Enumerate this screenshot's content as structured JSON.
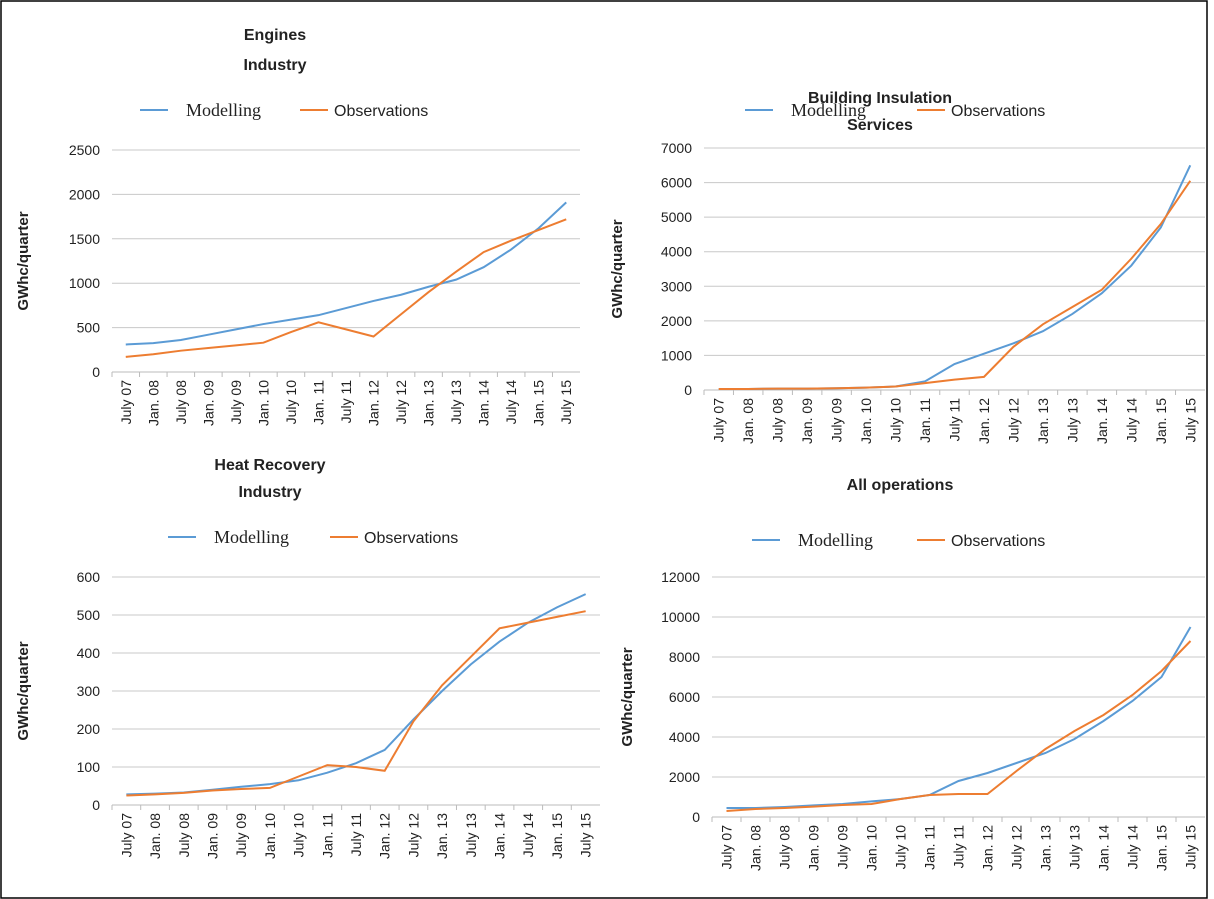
{
  "chart_data": [
    {
      "type": "line",
      "title": [
        "Engines",
        "Industry"
      ],
      "y_label": "GWhc/quarter",
      "categories": [
        "July 07",
        "Jan. 08",
        "July 08",
        "Jan. 09",
        "July 09",
        "Jan. 10",
        "July 10",
        "Jan. 11",
        "July 11",
        "Jan. 12",
        "July 12",
        "Jan. 13",
        "July 13",
        "Jan. 14",
        "July 14",
        "Jan. 15",
        "July 15"
      ],
      "series": [
        {
          "name": "Modelling",
          "color": "#5b9bd5",
          "values": [
            310,
            325,
            360,
            420,
            480,
            540,
            590,
            640,
            720,
            800,
            870,
            960,
            1040,
            1180,
            1380,
            1620,
            1910
          ]
        },
        {
          "name": "Observations",
          "color": "#ed7d31",
          "values": [
            170,
            200,
            240,
            270,
            300,
            330,
            450,
            560,
            480,
            400,
            650,
            900,
            1130,
            1350,
            1480,
            1600,
            1720
          ]
        }
      ],
      "ylim": [
        0,
        2500
      ],
      "yticks": [
        0,
        500,
        1000,
        1500,
        2000,
        2500
      ],
      "grid": true
    },
    {
      "type": "line",
      "title": [
        "Building Insulation",
        "Services"
      ],
      "y_label": "GWhc/quarter",
      "categories": [
        "July 07",
        "Jan. 08",
        "July 08",
        "Jan. 09",
        "July 09",
        "Jan. 10",
        "July 10",
        "Jan. 11",
        "July 11",
        "Jan. 12",
        "July 12",
        "Jan. 13",
        "July 13",
        "Jan. 14",
        "July 14",
        "Jan. 15",
        "July 15"
      ],
      "series": [
        {
          "name": "Modelling",
          "color": "#5b9bd5",
          "values": [
            30,
            30,
            40,
            40,
            50,
            70,
            100,
            250,
            750,
            1050,
            1350,
            1700,
            2200,
            2800,
            3600,
            4700,
            6500
          ]
        },
        {
          "name": "Observations",
          "color": "#ed7d31",
          "values": [
            30,
            30,
            40,
            40,
            50,
            70,
            100,
            200,
            300,
            380,
            1250,
            1900,
            2400,
            2900,
            3800,
            4800,
            6050
          ]
        }
      ],
      "ylim": [
        0,
        7000
      ],
      "yticks": [
        0,
        1000,
        2000,
        3000,
        4000,
        5000,
        6000,
        7000
      ],
      "grid": true
    },
    {
      "type": "line",
      "title": [
        "Heat Recovery",
        "Industry"
      ],
      "y_label": "GWhc/quarter",
      "categories": [
        "July 07",
        "Jan. 08",
        "July 08",
        "Jan. 09",
        "July 09",
        "Jan. 10",
        "July 10",
        "Jan. 11",
        "July 11",
        "Jan. 12",
        "July 12",
        "Jan. 13",
        "July 13",
        "Jan. 14",
        "July 14",
        "Jan. 15",
        "July 15"
      ],
      "series": [
        {
          "name": "Modelling",
          "color": "#5b9bd5",
          "values": [
            28,
            30,
            33,
            40,
            48,
            55,
            65,
            85,
            110,
            145,
            225,
            300,
            370,
            430,
            480,
            520,
            555
          ]
        },
        {
          "name": "Observations",
          "color": "#ed7d31",
          "values": [
            25,
            28,
            32,
            38,
            42,
            45,
            75,
            105,
            100,
            90,
            220,
            315,
            390,
            465,
            480,
            495,
            510
          ]
        }
      ],
      "ylim": [
        0,
        600
      ],
      "yticks": [
        0,
        100,
        200,
        300,
        400,
        500,
        600
      ],
      "grid": true
    },
    {
      "type": "line",
      "title": [
        "All operations"
      ],
      "y_label": "GWhc/quarter",
      "categories": [
        "July 07",
        "Jan. 08",
        "July 08",
        "Jan. 09",
        "July 09",
        "Jan. 10",
        "July 10",
        "Jan. 11",
        "July 11",
        "Jan. 12",
        "July 12",
        "Jan. 13",
        "July 13",
        "Jan. 14",
        "July 14",
        "Jan. 15",
        "July 15"
      ],
      "series": [
        {
          "name": "Modelling",
          "color": "#5b9bd5",
          "values": [
            450,
            450,
            500,
            580,
            650,
            780,
            900,
            1100,
            1800,
            2200,
            2700,
            3200,
            3900,
            4800,
            5800,
            7000,
            9500
          ]
        },
        {
          "name": "Observations",
          "color": "#ed7d31",
          "values": [
            300,
            400,
            450,
            520,
            600,
            650,
            900,
            1100,
            1150,
            1150,
            2300,
            3400,
            4300,
            5100,
            6100,
            7300,
            8800
          ]
        }
      ],
      "ylim": [
        0,
        12000
      ],
      "yticks": [
        0,
        2000,
        4000,
        6000,
        8000,
        10000,
        12000
      ],
      "grid": true
    }
  ]
}
